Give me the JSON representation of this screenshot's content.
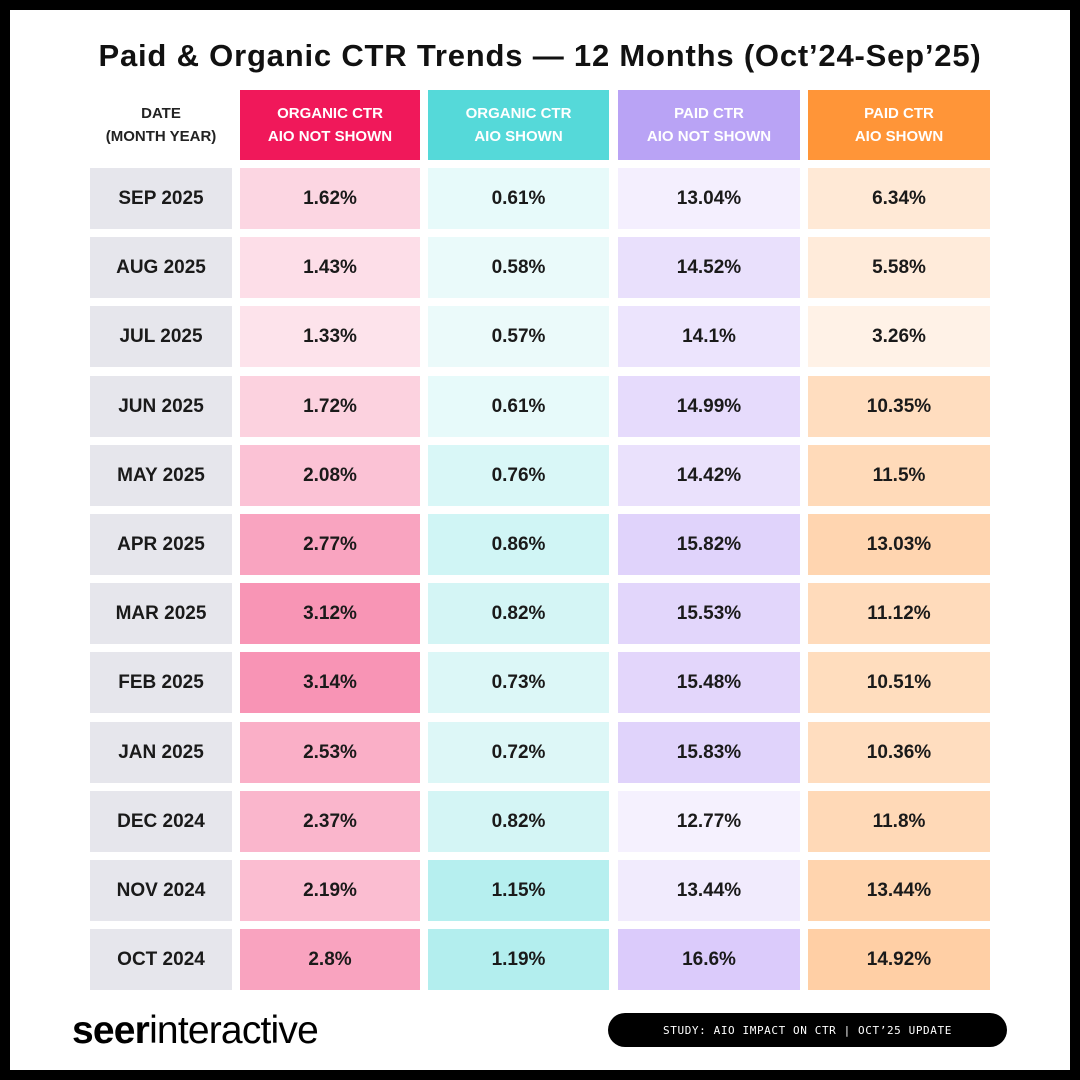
{
  "title": "Paid & Organic CTR Trends — 12 Months (Oct’24-Sep’25)",
  "header": {
    "date_line1": "DATE",
    "date_line2": "(MONTH YEAR)",
    "col1_line1": "ORGANIC CTR",
    "col1_line2": "AIO NOT SHOWN",
    "col2_line1": "ORGANIC CTR",
    "col2_line2": "AIO SHOWN",
    "col3_line1": "PAID CTR",
    "col3_line2": "AIO NOT SHOWN",
    "col4_line1": "PAID CTR",
    "col4_line2": "AIO SHOWN"
  },
  "colors": {
    "organic_not_shown": "#f0185a",
    "organic_shown": "#55d9d9",
    "paid_not_shown": "#b9a3f5",
    "paid_shown": "#ff9538"
  },
  "chart_data": {
    "type": "table",
    "title": "Paid & Organic CTR Trends — 12 Months (Oct’24-Sep’25)",
    "columns": [
      "DATE (MONTH YEAR)",
      "ORGANIC CTR AIO NOT SHOWN",
      "ORGANIC CTR AIO SHOWN",
      "PAID CTR AIO NOT SHOWN",
      "PAID CTR AIO SHOWN"
    ],
    "rows": [
      {
        "date": "SEP 2025",
        "organic_not_shown": "1.62%",
        "organic_shown": "0.61%",
        "paid_not_shown": "13.04%",
        "paid_shown": "6.34%"
      },
      {
        "date": "AUG 2025",
        "organic_not_shown": "1.43%",
        "organic_shown": "0.58%",
        "paid_not_shown": "14.52%",
        "paid_shown": "5.58%"
      },
      {
        "date": "JUL 2025",
        "organic_not_shown": "1.33%",
        "organic_shown": "0.57%",
        "paid_not_shown": "14.1%",
        "paid_shown": "3.26%"
      },
      {
        "date": "JUN 2025",
        "organic_not_shown": "1.72%",
        "organic_shown": "0.61%",
        "paid_not_shown": "14.99%",
        "paid_shown": "10.35%"
      },
      {
        "date": "MAY 2025",
        "organic_not_shown": "2.08%",
        "organic_shown": "0.76%",
        "paid_not_shown": "14.42%",
        "paid_shown": "11.5%"
      },
      {
        "date": "APR 2025",
        "organic_not_shown": "2.77%",
        "organic_shown": "0.86%",
        "paid_not_shown": "15.82%",
        "paid_shown": "13.03%"
      },
      {
        "date": "MAR 2025",
        "organic_not_shown": "3.12%",
        "organic_shown": "0.82%",
        "paid_not_shown": "15.53%",
        "paid_shown": "11.12%"
      },
      {
        "date": "FEB 2025",
        "organic_not_shown": "3.14%",
        "organic_shown": "0.73%",
        "paid_not_shown": "15.48%",
        "paid_shown": "10.51%"
      },
      {
        "date": "JAN 2025",
        "organic_not_shown": "2.53%",
        "organic_shown": "0.72%",
        "paid_not_shown": "15.83%",
        "paid_shown": "10.36%"
      },
      {
        "date": "DEC 2024",
        "organic_not_shown": "2.37%",
        "organic_shown": "0.82%",
        "paid_not_shown": "12.77%",
        "paid_shown": "11.8%"
      },
      {
        "date": "NOV 2024",
        "organic_not_shown": "2.19%",
        "organic_shown": "1.15%",
        "paid_not_shown": "13.44%",
        "paid_shown": "13.44%"
      },
      {
        "date": "OCT 2024",
        "organic_not_shown": "2.8%",
        "organic_shown": "1.19%",
        "paid_not_shown": "16.6%",
        "paid_shown": "14.92%"
      }
    ]
  },
  "footer": {
    "brand_bold": "seer",
    "brand_regular": "interactive",
    "badge": "STUDY: AIO IMPACT ON CTR | OCT’25 UPDATE"
  }
}
